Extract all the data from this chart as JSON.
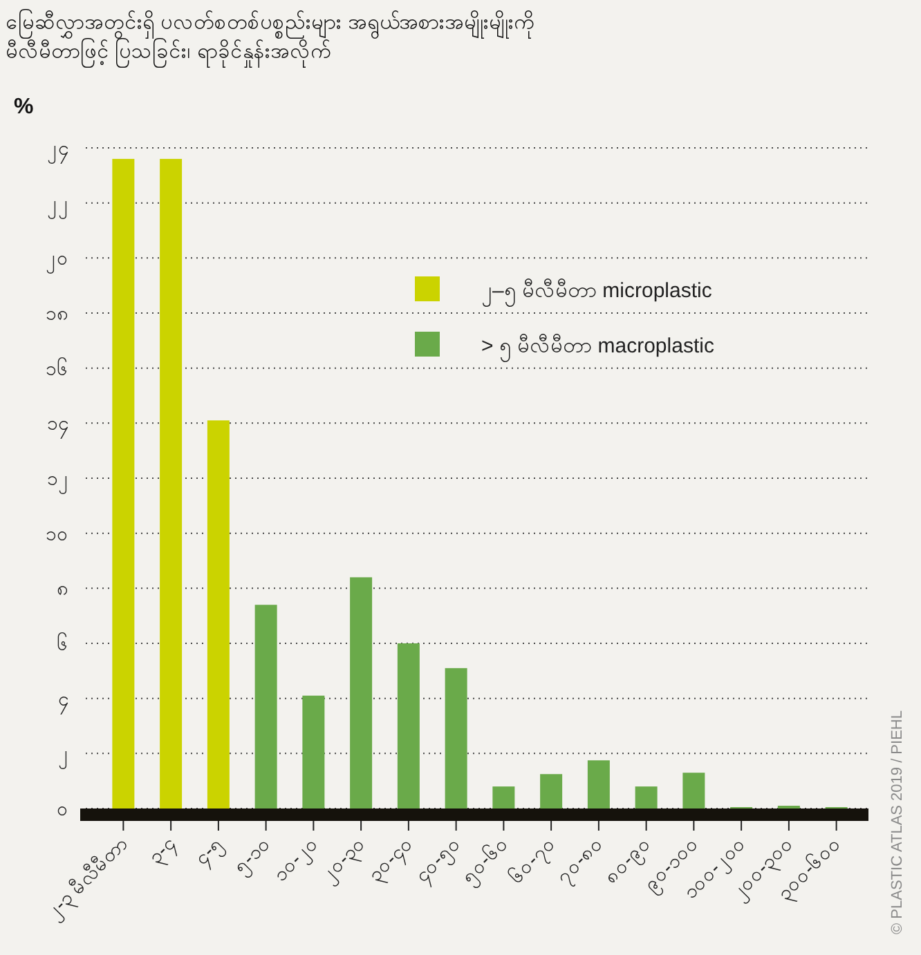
{
  "chart_data": {
    "type": "bar",
    "title": "မြေဆီလွှာအတွင်းရှိ ပလတ်စတစ်ပစ္စည်းများ အရွယ်အစားအမျိုးမျိုးကို မီလီမီတာဖြင့် ပြသခြင်း၊ ရာခိုင်နှုန်းအလိုက်",
    "ylabel": "%",
    "categories": [
      "၂-၃ မီလီမီတာ",
      "၃-၄",
      "၄-၅",
      "၅-၁၀",
      "၁၀-၂၀",
      "၂၀-၃၀",
      "၃၀-၄၀",
      "၄၀-၅၀",
      "၅၀-၆၀",
      "၆၀-၇၀",
      "၇၀-၈၀",
      "၈၀-၉၀",
      "၉၀-၁၀၀",
      "၁၀၀-၂၀၀",
      "၂၀၀-၃၀၀",
      "၃၀၀-၆၀၀"
    ],
    "series": [
      {
        "name": "၂–၅ မီလီမီတာ microplastic",
        "color": "#cbd300",
        "values": [
          23.6,
          23.6,
          14.1,
          null,
          null,
          null,
          null,
          null,
          null,
          null,
          null,
          null,
          null,
          null,
          null,
          null
        ]
      },
      {
        "name": "> ၅ မီလီမီတာ macroplastic",
        "color": "#6aaa4a",
        "values": [
          null,
          null,
          null,
          7.4,
          4.1,
          8.4,
          6.0,
          5.1,
          0.8,
          1.25,
          1.75,
          0.8,
          1.3,
          0.05,
          0.1,
          0.05
        ]
      }
    ],
    "ylim": [
      0,
      24
    ],
    "yticks": [
      {
        "value": 0,
        "label": "၀"
      },
      {
        "value": 2,
        "label": "၂"
      },
      {
        "value": 4,
        "label": "၄"
      },
      {
        "value": 6,
        "label": "၆"
      },
      {
        "value": 8,
        "label": "၈"
      },
      {
        "value": 10,
        "label": "၁၀"
      },
      {
        "value": 12,
        "label": "၁၂"
      },
      {
        "value": 14,
        "label": "၁၄"
      },
      {
        "value": 16,
        "label": "၁၆"
      },
      {
        "value": 18,
        "label": "၁၈"
      },
      {
        "value": 20,
        "label": "၂၀"
      },
      {
        "value": 22,
        "label": "၂၂"
      },
      {
        "value": 24,
        "label": "၂၄"
      }
    ],
    "grid": "y",
    "legend": "top right",
    "annotations": [
      "© PLASTIC ATLAS 2019 / PIEHL"
    ]
  }
}
